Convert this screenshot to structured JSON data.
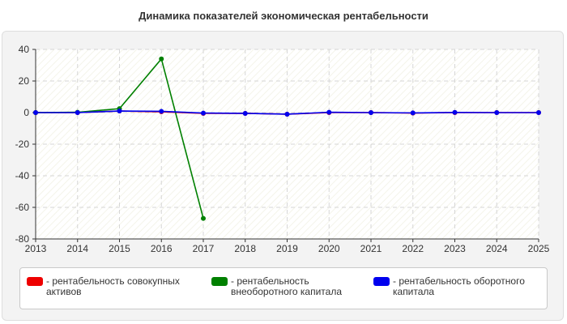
{
  "chart_data": {
    "type": "line",
    "title": "Динамика показателей экономическая рентабельности",
    "x": [
      2013,
      2014,
      2015,
      2016,
      2017,
      2018,
      2019,
      2020,
      2021,
      2022,
      2023,
      2024,
      2025
    ],
    "x_tick_labels": [
      "2013",
      "2014",
      "2015",
      "2016",
      "2017",
      "2018",
      "2019",
      "2020",
      "2021",
      "2022",
      "2023",
      "2024",
      "2025"
    ],
    "ylim": [
      -80,
      40
    ],
    "y_ticks": [
      40,
      20,
      0,
      -20,
      -40,
      -60,
      -80
    ],
    "y_tick_labels": [
      "40",
      "20",
      "0",
      "-20",
      "-40",
      "-60",
      "-80"
    ],
    "grid": true,
    "legend_position": "bottom",
    "series": [
      {
        "name": "- рентабельность совокупных активов",
        "color": "#ee0000",
        "x": [
          2013,
          2014,
          2015,
          2016,
          2017,
          2018,
          2019,
          2020,
          2021,
          2022,
          2023,
          2024,
          2025
        ],
        "values": [
          0,
          0,
          1,
          0.5,
          -0.5,
          -0.5,
          -1,
          0,
          0,
          -0.3,
          0,
          0,
          0
        ]
      },
      {
        "name": "- рентабельность внеоборотного капитала",
        "color": "#008000",
        "x": [
          2013,
          2014,
          2015,
          2016,
          2017
        ],
        "values": [
          0,
          0.2,
          2.5,
          34,
          -67
        ]
      },
      {
        "name": "- рентабельность оборотного капитала",
        "color": "#0000ee",
        "x": [
          2013,
          2014,
          2015,
          2016,
          2017,
          2018,
          2019,
          2020,
          2021,
          2022,
          2023,
          2024,
          2025
        ],
        "values": [
          0,
          0,
          1,
          0.8,
          -0.3,
          -0.5,
          -1,
          0.2,
          0,
          -0.2,
          0.1,
          0,
          0
        ]
      }
    ]
  }
}
